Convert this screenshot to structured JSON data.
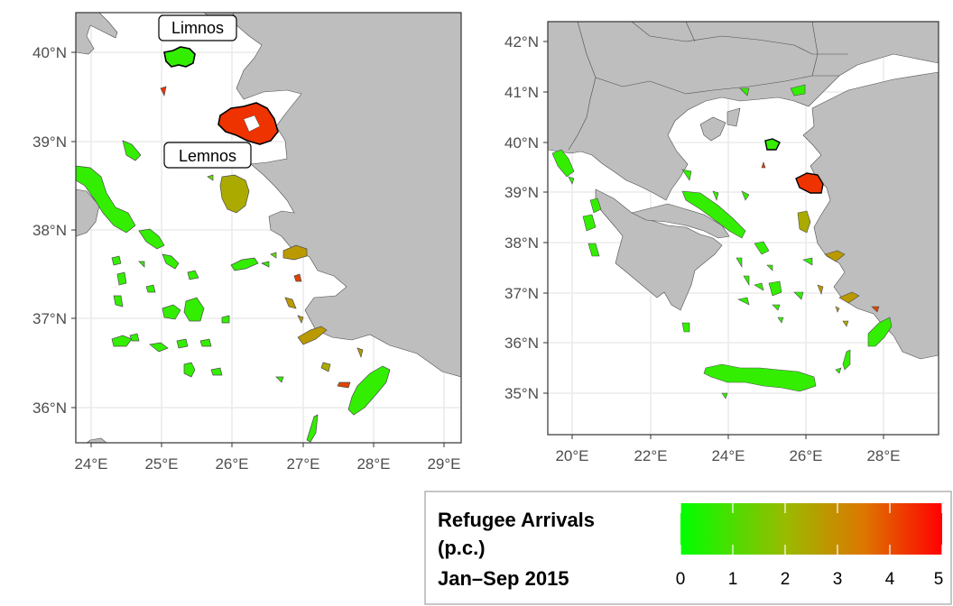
{
  "left_map": {
    "x_ticks": [
      "24°E",
      "25°E",
      "26°E",
      "27°E",
      "28°E",
      "29°E"
    ],
    "y_ticks": [
      "40°N",
      "39°N",
      "38°N",
      "37°N",
      "36°N"
    ],
    "callouts": [
      "Limnos",
      "Lemnos"
    ]
  },
  "right_map": {
    "x_ticks": [
      "20°E",
      "22°E",
      "24°E",
      "26°E",
      "28°E"
    ],
    "y_ticks": [
      "42°N",
      "41°N",
      "40°N",
      "39°N",
      "38°N",
      "37°N",
      "36°N",
      "35°N"
    ]
  },
  "legend": {
    "title_lines": [
      "Refugee Arrivals",
      "(p.c.)",
      "Jan–Sep 2015"
    ],
    "ticks": [
      "0",
      "1",
      "2",
      "3",
      "4",
      "5"
    ],
    "scale_min": 0,
    "scale_max": 5,
    "colors": [
      "#00ff00",
      "#ff0000"
    ]
  },
  "colors": {
    "land": "#bebebe",
    "sea": "#ffffff",
    "gridline": "#ebebeb",
    "border": "#333333"
  }
}
